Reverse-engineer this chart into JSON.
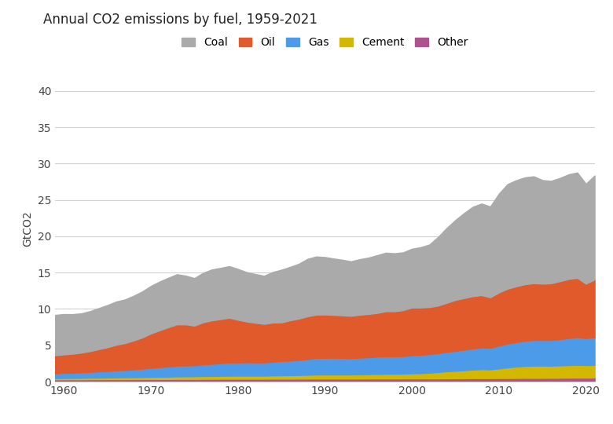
{
  "title": "Annual CO2 emissions by fuel, 1959-2021",
  "ylabel": "GtCO2",
  "ylim": [
    0,
    42
  ],
  "yticks": [
    0,
    5,
    10,
    15,
    20,
    25,
    30,
    35,
    40
  ],
  "xlim": [
    1959,
    2021
  ],
  "xticks": [
    1960,
    1970,
    1980,
    1990,
    2000,
    2010,
    2020
  ],
  "background_color": "#ffffff",
  "grid_color": "#d0d0d0",
  "legend_labels": [
    "Coal",
    "Oil",
    "Gas",
    "Cement",
    "Other"
  ],
  "legend_colors": [
    "#aaaaaa",
    "#e05a2b",
    "#4c9be8",
    "#d4b800",
    "#b05090"
  ],
  "years": [
    1959,
    1960,
    1961,
    1962,
    1963,
    1964,
    1965,
    1966,
    1967,
    1968,
    1969,
    1970,
    1971,
    1972,
    1973,
    1974,
    1975,
    1976,
    1977,
    1978,
    1979,
    1980,
    1981,
    1982,
    1983,
    1984,
    1985,
    1986,
    1987,
    1988,
    1989,
    1990,
    1991,
    1992,
    1993,
    1994,
    1995,
    1996,
    1997,
    1998,
    1999,
    2000,
    2001,
    2002,
    2003,
    2004,
    2005,
    2006,
    2007,
    2008,
    2009,
    2010,
    2011,
    2012,
    2013,
    2014,
    2015,
    2016,
    2017,
    2018,
    2019,
    2020,
    2021
  ],
  "other": [
    0.3,
    0.31,
    0.31,
    0.31,
    0.32,
    0.32,
    0.33,
    0.33,
    0.33,
    0.34,
    0.34,
    0.35,
    0.35,
    0.35,
    0.36,
    0.36,
    0.36,
    0.37,
    0.37,
    0.38,
    0.38,
    0.38,
    0.38,
    0.38,
    0.38,
    0.39,
    0.39,
    0.39,
    0.4,
    0.4,
    0.41,
    0.41,
    0.41,
    0.41,
    0.41,
    0.41,
    0.42,
    0.42,
    0.42,
    0.42,
    0.43,
    0.43,
    0.43,
    0.44,
    0.44,
    0.45,
    0.45,
    0.46,
    0.47,
    0.47,
    0.47,
    0.48,
    0.48,
    0.49,
    0.5,
    0.5,
    0.5,
    0.51,
    0.52,
    0.53,
    0.54,
    0.54,
    0.55
  ],
  "cement": [
    0.17,
    0.18,
    0.19,
    0.2,
    0.21,
    0.22,
    0.23,
    0.25,
    0.26,
    0.27,
    0.28,
    0.29,
    0.31,
    0.33,
    0.35,
    0.36,
    0.37,
    0.39,
    0.4,
    0.41,
    0.43,
    0.43,
    0.43,
    0.43,
    0.43,
    0.45,
    0.47,
    0.49,
    0.5,
    0.53,
    0.56,
    0.57,
    0.57,
    0.57,
    0.57,
    0.58,
    0.6,
    0.62,
    0.64,
    0.65,
    0.66,
    0.7,
    0.73,
    0.78,
    0.87,
    0.97,
    1.03,
    1.1,
    1.18,
    1.24,
    1.2,
    1.33,
    1.47,
    1.57,
    1.65,
    1.7,
    1.7,
    1.68,
    1.7,
    1.74,
    1.76,
    1.73,
    1.73
  ],
  "gas": [
    0.65,
    0.7,
    0.73,
    0.77,
    0.81,
    0.87,
    0.91,
    0.98,
    1.0,
    1.07,
    1.15,
    1.25,
    1.33,
    1.4,
    1.48,
    1.5,
    1.52,
    1.6,
    1.67,
    1.75,
    1.82,
    1.82,
    1.85,
    1.83,
    1.83,
    1.9,
    1.98,
    2.0,
    2.08,
    2.18,
    2.27,
    2.28,
    2.3,
    2.25,
    2.24,
    2.3,
    2.33,
    2.4,
    2.42,
    2.4,
    2.42,
    2.5,
    2.53,
    2.55,
    2.6,
    2.67,
    2.75,
    2.83,
    2.9,
    2.98,
    2.97,
    3.15,
    3.28,
    3.37,
    3.47,
    3.52,
    3.52,
    3.53,
    3.62,
    3.72,
    3.82,
    3.7,
    3.85
  ],
  "oil": [
    2.5,
    2.55,
    2.6,
    2.7,
    2.85,
    3.05,
    3.25,
    3.5,
    3.7,
    3.97,
    4.28,
    4.72,
    5.07,
    5.4,
    5.68,
    5.65,
    5.44,
    5.8,
    5.98,
    6.05,
    6.15,
    5.87,
    5.6,
    5.45,
    5.3,
    5.38,
    5.3,
    5.55,
    5.68,
    5.87,
    5.97,
    5.97,
    5.9,
    5.88,
    5.82,
    5.9,
    5.95,
    6.0,
    6.2,
    6.2,
    6.32,
    6.55,
    6.5,
    6.48,
    6.54,
    6.75,
    7.0,
    7.1,
    7.2,
    7.2,
    6.95,
    7.3,
    7.55,
    7.68,
    7.78,
    7.82,
    7.75,
    7.8,
    7.97,
    8.12,
    8.15,
    7.5,
    7.92
  ],
  "coal": [
    5.55,
    5.55,
    5.45,
    5.4,
    5.5,
    5.65,
    5.8,
    5.95,
    6.0,
    6.15,
    6.35,
    6.55,
    6.7,
    6.8,
    6.9,
    6.7,
    6.55,
    6.8,
    7.0,
    7.05,
    7.1,
    7.0,
    6.8,
    6.7,
    6.62,
    6.95,
    7.25,
    7.35,
    7.55,
    7.9,
    8.0,
    7.9,
    7.75,
    7.65,
    7.5,
    7.65,
    7.75,
    7.95,
    8.05,
    7.98,
    7.95,
    8.1,
    8.3,
    8.6,
    9.45,
    10.3,
    11.0,
    11.7,
    12.3,
    12.6,
    12.5,
    13.6,
    14.4,
    14.6,
    14.7,
    14.7,
    14.25,
    14.1,
    14.2,
    14.4,
    14.5,
    13.75,
    14.3
  ]
}
